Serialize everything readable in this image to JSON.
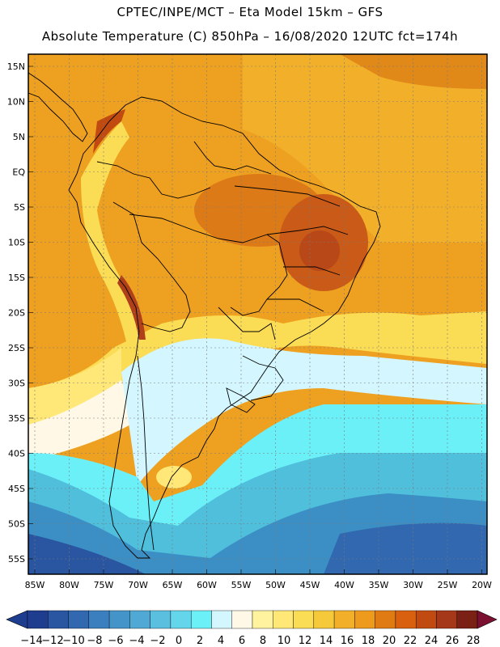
{
  "header": {
    "title_line1": "CPTEC/INPE/MCT –  Eta Model 15km – GFS",
    "title_line2": "Absolute Temperature (C) 850hPa – 16/08/2020 12UTC fct=174h"
  },
  "map": {
    "lat_labels": [
      "15N",
      "10N",
      "5N",
      "EQ",
      "5S",
      "10S",
      "15S",
      "20S",
      "25S",
      "30S",
      "35S",
      "40S",
      "45S",
      "50S",
      "55S"
    ],
    "lon_labels": [
      "85W",
      "80W",
      "75W",
      "70W",
      "65W",
      "60W",
      "55W",
      "50W",
      "45W",
      "40W",
      "35W",
      "30W",
      "25W",
      "20W"
    ]
  },
  "legend": {
    "labels": [
      "-14",
      "-12",
      "-10",
      "-8",
      "-6",
      "-4",
      "-2",
      "0",
      "2",
      "4",
      "6",
      "8",
      "10",
      "12",
      "14",
      "16",
      "18",
      "20",
      "22",
      "24",
      "26",
      "28"
    ],
    "colors": [
      "#1e3d8f",
      "#2a55a0",
      "#3168b0",
      "#3b7fbe",
      "#4594c9",
      "#4fa9d4",
      "#5bbfe0",
      "#63d6ec",
      "#6cf0f8",
      "#d4f6ff",
      "#fff8e6",
      "#fff3a0",
      "#ffe878",
      "#fbdc55",
      "#f5c93a",
      "#f2b02a",
      "#ee9a1c",
      "#e07a12",
      "#d8600e",
      "#c04a10",
      "#a43818",
      "#7b2014"
    ],
    "low_color": "#1e3d8f",
    "high_color": "#7b1030"
  }
}
